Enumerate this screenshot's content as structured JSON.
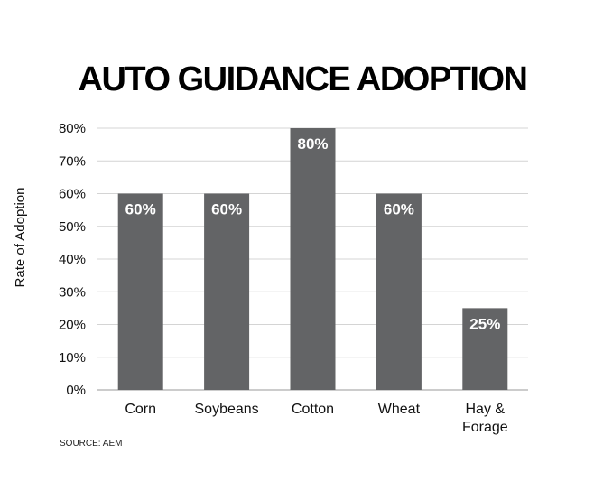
{
  "chart_data": {
    "type": "bar",
    "title": "AUTO GUIDANCE ADOPTION",
    "ylabel": "Rate of Adoption",
    "xlabel": "",
    "categories": [
      [
        "Corn"
      ],
      [
        "Soybeans"
      ],
      [
        "Cotton"
      ],
      [
        "Wheat"
      ],
      [
        "Hay &",
        "Forage"
      ]
    ],
    "values": [
      60,
      60,
      80,
      60,
      25
    ],
    "data_labels": [
      "60%",
      "60%",
      "80%",
      "60%",
      "25%"
    ],
    "ylim": [
      0,
      80
    ],
    "yticks": [
      0,
      10,
      20,
      30,
      40,
      50,
      60,
      70,
      80
    ],
    "ytick_labels": [
      "0%",
      "10%",
      "20%",
      "30%",
      "40%",
      "50%",
      "60%",
      "70%",
      "80%"
    ],
    "grid": true,
    "bar_color": "#636466",
    "grid_color": "#d4d4d4",
    "source": "SOURCE: AEM"
  }
}
